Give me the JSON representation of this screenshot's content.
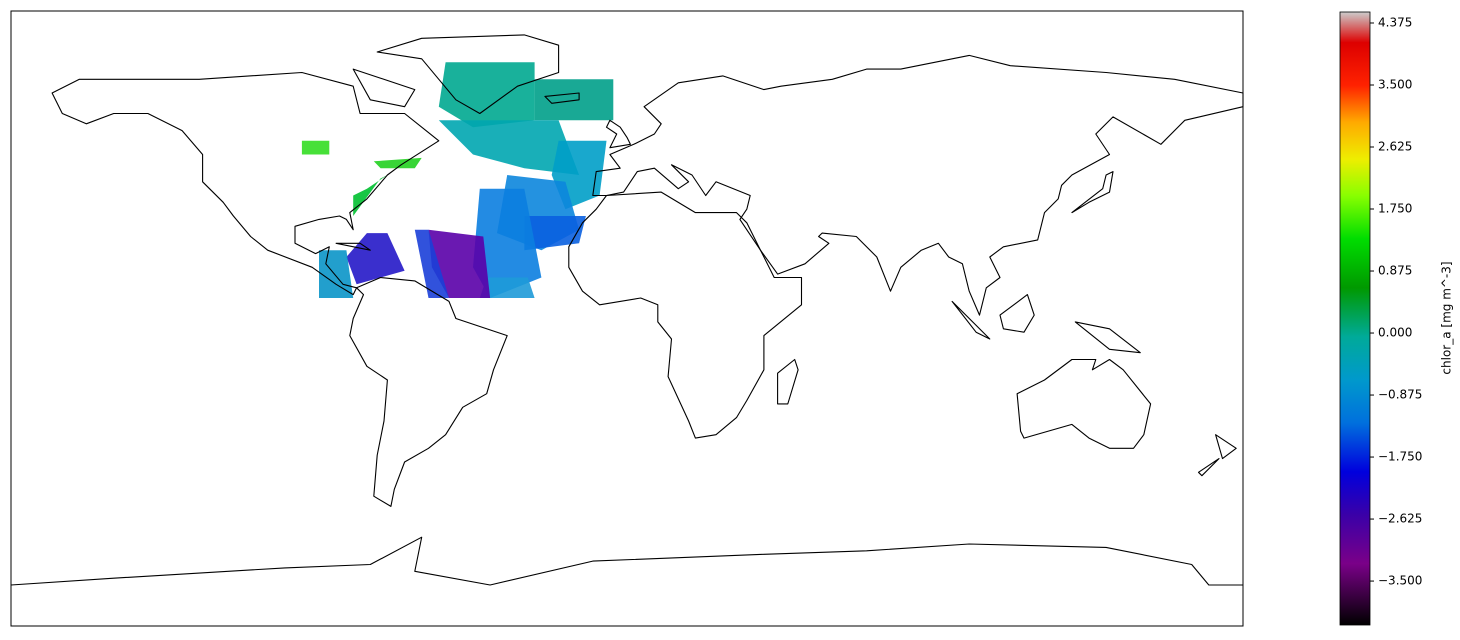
{
  "colorbar": {
    "label": "chlor_a [mg m^-3]",
    "lim": [
      -4.12,
      4.53
    ],
    "ticks": [
      {
        "value": -3.5,
        "label": "−3.500"
      },
      {
        "value": -2.625,
        "label": "−2.625"
      },
      {
        "value": -1.75,
        "label": "−1.750"
      },
      {
        "value": -0.875,
        "label": "−0.875"
      },
      {
        "value": 0,
        "label": "0.000"
      },
      {
        "value": 0.875,
        "label": "0.875"
      },
      {
        "value": 1.75,
        "label": "1.750"
      },
      {
        "value": 2.625,
        "label": "2.625"
      },
      {
        "value": 3.5,
        "label": "3.500"
      },
      {
        "value": 4.375,
        "label": "4.375"
      }
    ]
  }
}
